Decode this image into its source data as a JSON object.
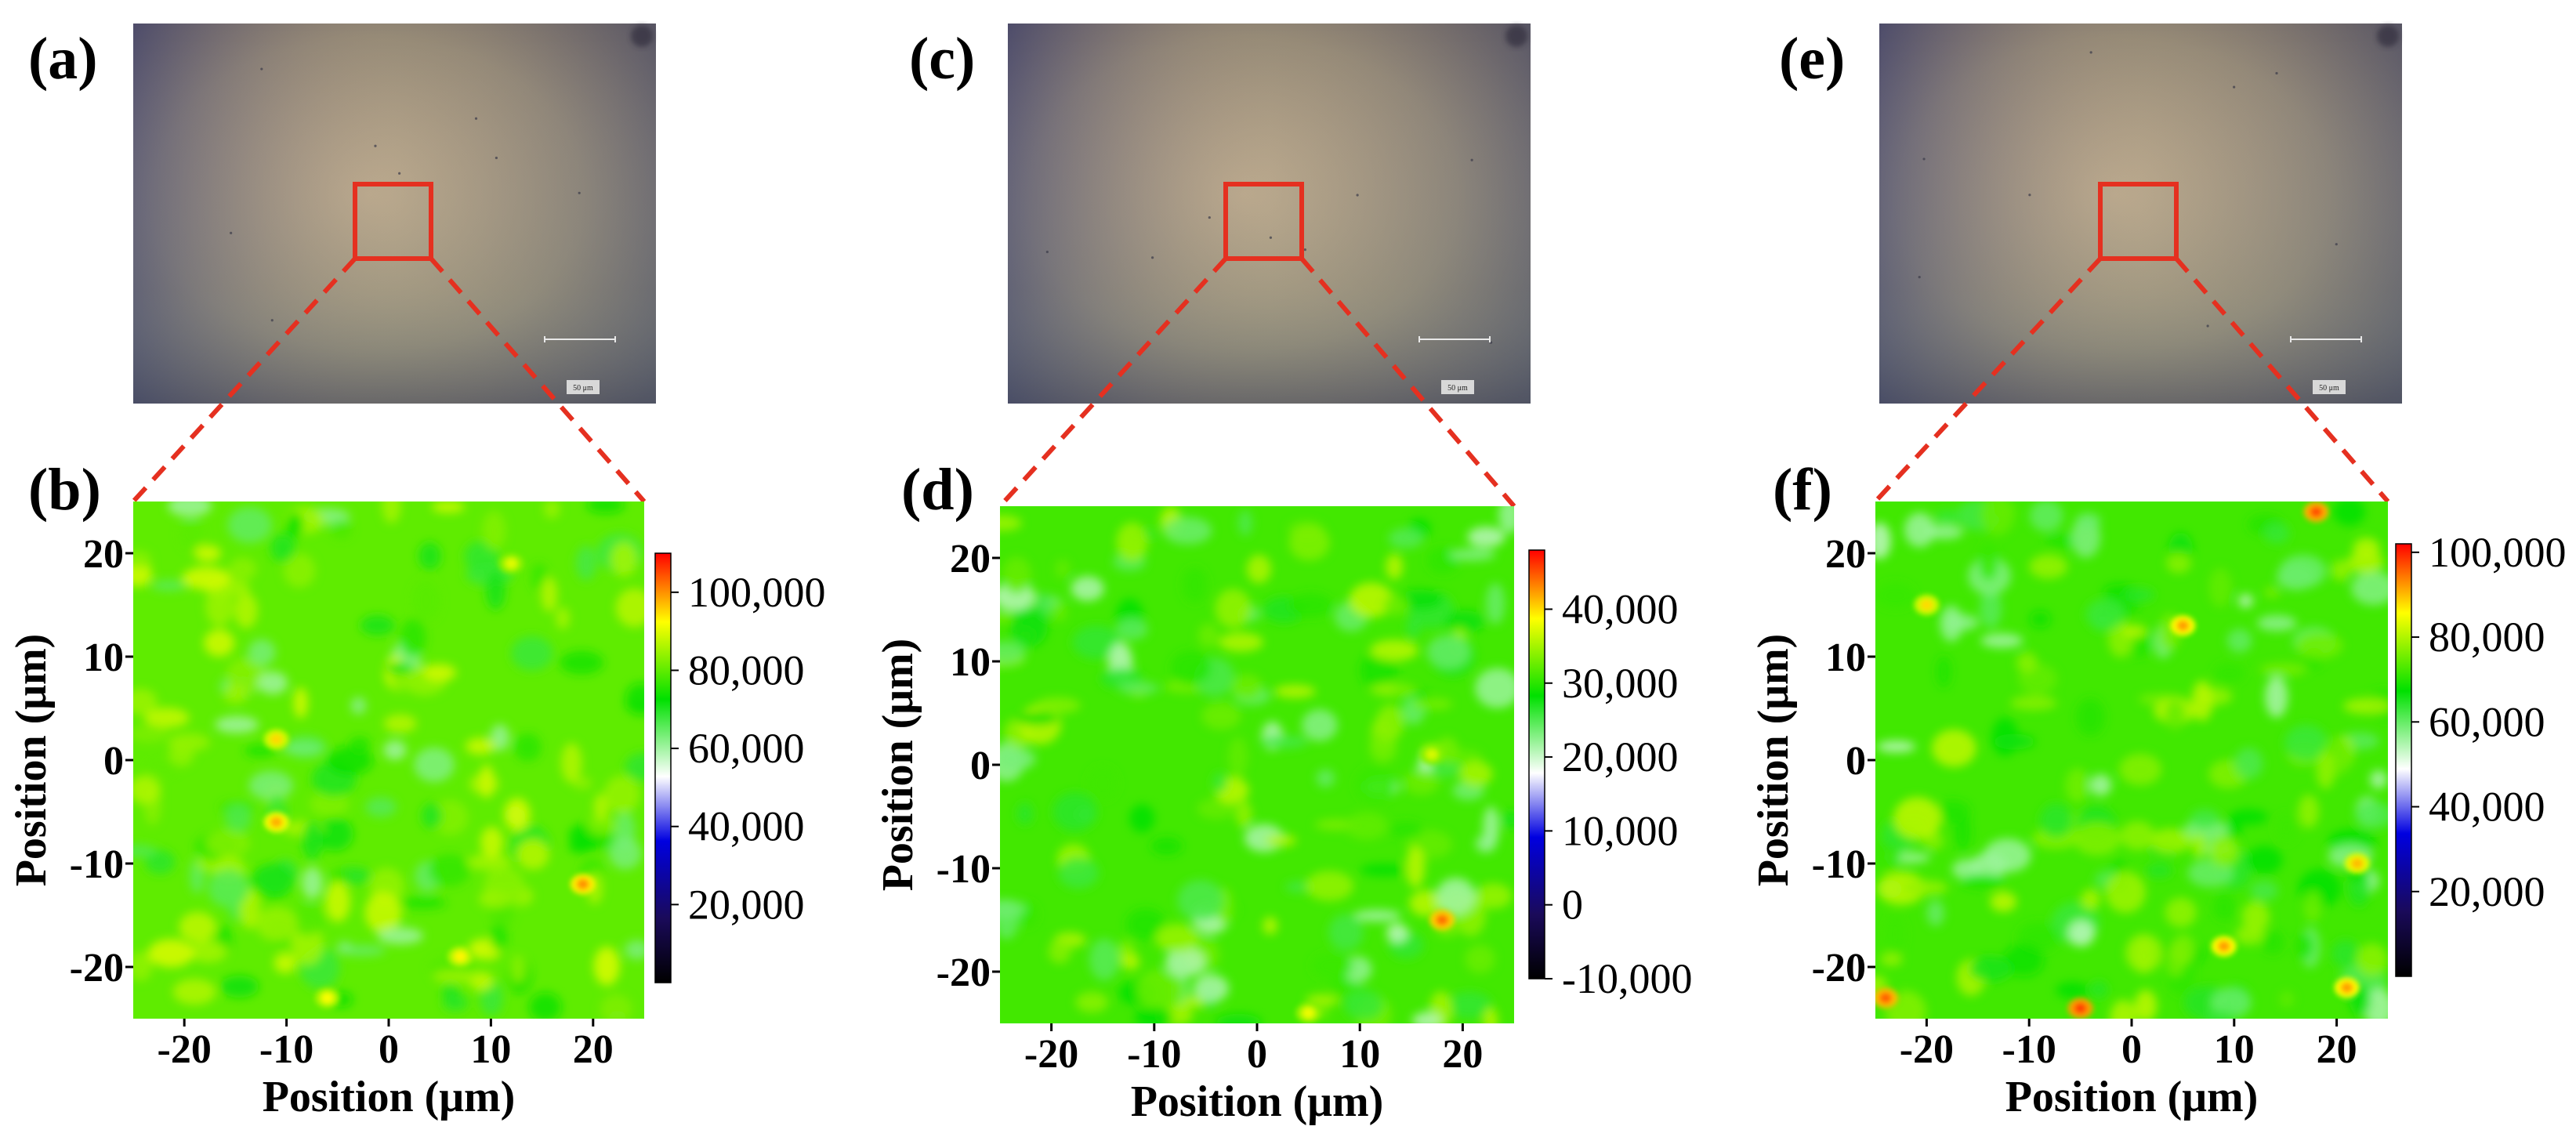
{
  "chart_data": [
    {
      "panel": "(a)",
      "type": "image",
      "scale_bar_label": "50 μm",
      "highlight_color": "#e53020"
    },
    {
      "panel": "(b)",
      "type": "heatmap",
      "xlabel": "Position (μm)",
      "ylabel": "Position (μm)",
      "xlim": [
        -25,
        25
      ],
      "ylim": [
        -25,
        25
      ],
      "xticks": [
        -20,
        -10,
        0,
        10,
        20
      ],
      "yticks": [
        20,
        10,
        0,
        -10,
        -20
      ],
      "colorbar": {
        "min": 0,
        "max": 110000,
        "ticks": [
          100000,
          80000,
          60000,
          40000,
          20000
        ],
        "tick_labels": [
          "100,000",
          "80,000",
          "60,000",
          "40,000",
          "20,000"
        ],
        "colormap": [
          "#000000",
          "#1a0a5a",
          "#0000e0",
          "#ffffff",
          "#00e000",
          "#ffff00",
          "#ff0000"
        ]
      },
      "typical_value": 80000,
      "hotspots": [
        {
          "x": -11,
          "y": 2,
          "value": 95000
        },
        {
          "x": -11,
          "y": -6,
          "value": 98000
        },
        {
          "x": 19,
          "y": -12,
          "value": 100000
        },
        {
          "x": 7,
          "y": -19,
          "value": 93000
        },
        {
          "x": -6,
          "y": -23,
          "value": 92000
        },
        {
          "x": 12,
          "y": 19,
          "value": 90000
        }
      ]
    },
    {
      "panel": "(c)",
      "type": "image",
      "scale_bar_label": "50 μm",
      "highlight_color": "#e53020"
    },
    {
      "panel": "(d)",
      "type": "heatmap",
      "xlabel": "Position (μm)",
      "ylabel": "Position (μm)",
      "xlim": [
        -25,
        25
      ],
      "ylim": [
        -25,
        25
      ],
      "xticks": [
        -20,
        -10,
        0,
        10,
        20
      ],
      "yticks": [
        20,
        10,
        0,
        -10,
        -20
      ],
      "colorbar": {
        "min": -10000,
        "max": 48000,
        "ticks": [
          40000,
          30000,
          20000,
          10000,
          0,
          -10000
        ],
        "tick_labels": [
          "40,000",
          "30,000",
          "20,000",
          "10,000",
          "0",
          "-10,000"
        ],
        "colormap": [
          "#000000",
          "#1a0a5a",
          "#0000e0",
          "#ffffff",
          "#00e000",
          "#ffff00",
          "#ff0000"
        ]
      },
      "typical_value": 31000,
      "hotspots": [
        {
          "x": 18,
          "y": -15,
          "value": 44000
        },
        {
          "x": 5,
          "y": -24,
          "value": 38000
        },
        {
          "x": 17,
          "y": 1,
          "value": 37000
        }
      ]
    },
    {
      "panel": "(e)",
      "type": "image",
      "scale_bar_label": "50 μm",
      "highlight_color": "#e53020"
    },
    {
      "panel": "(f)",
      "type": "heatmap",
      "xlabel": "Position (μm)",
      "ylabel": "Position (μm)",
      "xlim": [
        -25,
        25
      ],
      "ylim": [
        -25,
        25
      ],
      "xticks": [
        -20,
        -10,
        0,
        10,
        20
      ],
      "yticks": [
        20,
        10,
        0,
        -10,
        -20
      ],
      "colorbar": {
        "min": 0,
        "max": 102000,
        "ticks": [
          100000,
          80000,
          60000,
          40000,
          20000
        ],
        "tick_labels": [
          "100,000",
          "80,000",
          "60,000",
          "40,000",
          "20,000"
        ],
        "colormap": [
          "#000000",
          "#1a0a5a",
          "#0000e0",
          "#ffffff",
          "#00e000",
          "#ffff00",
          "#ff0000"
        ]
      },
      "typical_value": 72000,
      "hotspots": [
        {
          "x": 18,
          "y": 24,
          "value": 97000
        },
        {
          "x": 5,
          "y": 13,
          "value": 92000
        },
        {
          "x": -24,
          "y": -23,
          "value": 96000
        },
        {
          "x": -5,
          "y": -24,
          "value": 98000
        },
        {
          "x": 9,
          "y": -18,
          "value": 92000
        },
        {
          "x": 21,
          "y": -22,
          "value": 92000
        },
        {
          "x": -20,
          "y": 15,
          "value": 88000
        },
        {
          "x": 22,
          "y": -10,
          "value": 90000
        }
      ]
    }
  ]
}
